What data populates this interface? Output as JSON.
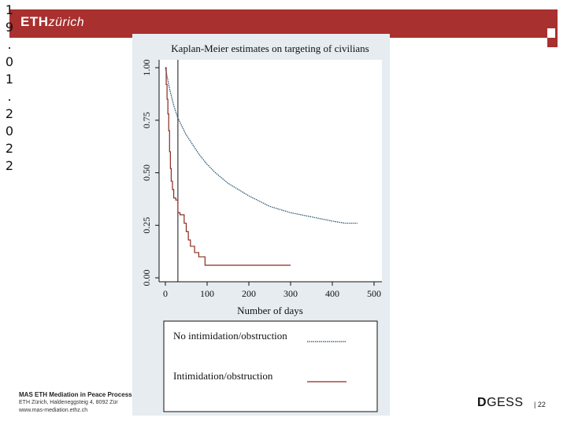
{
  "header": {
    "logo_bold": "ETH",
    "logo_rest": "zürich",
    "date_vertical": "1\n9\n.\n0\n1\n.\n2\n0\n2\n2"
  },
  "footer": {
    "line1": "MAS ETH Mediation in Peace Process",
    "line2": "ETH Zürich, Haldeneggsteig 4, 8092 Zür",
    "line3": "www.mas-mediation.ethz.ch",
    "dept_mark": "D",
    "dept_rest": "GESS",
    "page_number": "| 22"
  },
  "colors": {
    "banner": "#a8302f",
    "panel": "#e6ecf0",
    "series_no_intimidation": "#1f4e6b",
    "series_intimidation": "#8b2a1e"
  },
  "chart_data": {
    "type": "line",
    "title": "Kaplan-Meier estimates on targeting of civilians",
    "xlabel": "Number of days",
    "ylabel": "",
    "xlim": [
      0,
      500
    ],
    "ylim": [
      0,
      1
    ],
    "x_ticks": [
      "0",
      "100",
      "200",
      "300",
      "400",
      "500"
    ],
    "y_ticks": [
      "0.00",
      "0.25",
      "0.50",
      "0.75",
      "1.00"
    ],
    "vertical_marker_x": 30,
    "legend_position": "bottom",
    "series": [
      {
        "name": "No intimidation/obstruction",
        "style": "dotted",
        "x": [
          0,
          5,
          10,
          15,
          20,
          30,
          40,
          50,
          60,
          70,
          80,
          100,
          120,
          150,
          200,
          250,
          300,
          350,
          400,
          430,
          460
        ],
        "y": [
          1.0,
          0.95,
          0.9,
          0.86,
          0.82,
          0.76,
          0.72,
          0.68,
          0.65,
          0.62,
          0.59,
          0.54,
          0.5,
          0.45,
          0.39,
          0.34,
          0.31,
          0.29,
          0.27,
          0.26,
          0.26
        ]
      },
      {
        "name": "Intimidation/obstruction",
        "style": "step",
        "x": [
          0,
          2,
          4,
          6,
          8,
          10,
          12,
          14,
          17,
          20,
          25,
          30,
          35,
          45,
          50,
          55,
          60,
          70,
          80,
          95,
          300
        ],
        "y": [
          1.0,
          0.92,
          0.85,
          0.78,
          0.7,
          0.6,
          0.52,
          0.46,
          0.42,
          0.38,
          0.37,
          0.31,
          0.3,
          0.26,
          0.22,
          0.18,
          0.15,
          0.12,
          0.1,
          0.06,
          0.06
        ]
      }
    ]
  }
}
